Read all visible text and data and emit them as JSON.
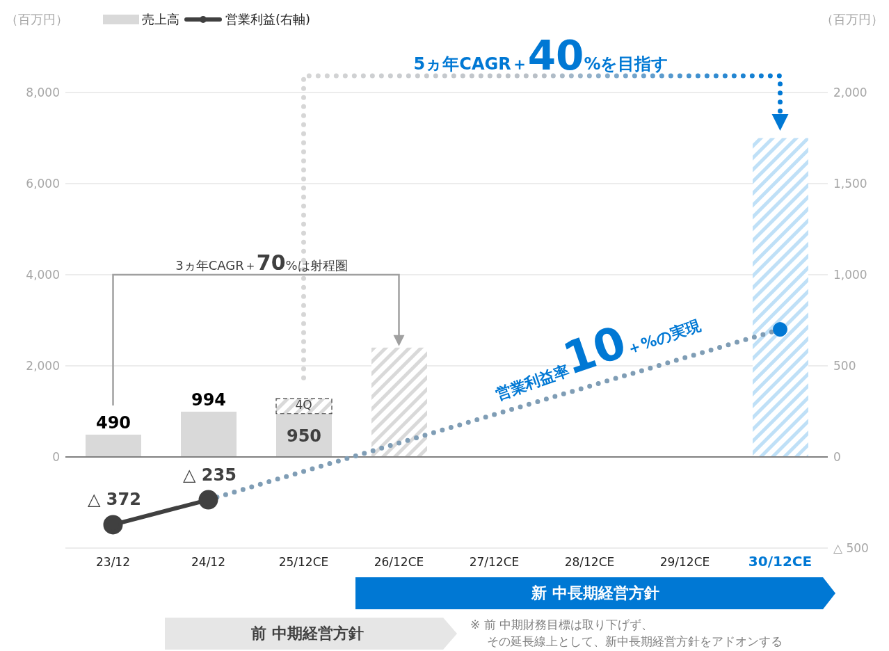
{
  "chart_data": {
    "type": "bar",
    "stacked": true,
    "categories": [
      "23/12",
      "24/12",
      "25/12CE",
      "26/12CE",
      "27/12CE",
      "28/12CE",
      "29/12CE",
      "30/12CE"
    ],
    "series": [
      {
        "name": "売上高",
        "color": "#d9d9d9",
        "values": [
          490,
          994,
          950,
          null,
          null,
          null,
          null,
          null
        ],
        "value_labels": [
          "490",
          "994",
          "950",
          null,
          null,
          null,
          null,
          null
        ]
      },
      {
        "color": "#404040",
        "line_style": "dashed",
        "values": [
          null,
          null,
          330,
          null,
          null,
          null,
          null,
          null
        ]
      },
      {
        "colors": [
          null,
          null,
          null,
          "#d9d9d9",
          null,
          null,
          null,
          "#bfe0f7"
        ],
        "values": [
          null,
          null,
          null,
          2400,
          null,
          null,
          null,
          7000
        ]
      },
      {
        "name": "営業利益(右軸)",
        "type": "line",
        "axis": "y2",
        "color": "#404040",
        "marker": "circle",
        "line_style": "solid",
        "values": [
          -372,
          -235,
          null,
          null,
          null,
          null,
          null,
          null
        ]
      },
      {
        "type": "line",
        "axis": "y2",
        "color": "#7f9db5",
        "marker": "none",
        "line_style": "dotted",
        "values": [
          null,
          -235,
          null,
          null,
          null,
          null,
          null,
          700
        ]
      },
      {
        "type": "scatter",
        "axis": "y2",
        "color": "#0078d4",
        "x": [
          "30/12CE"
        ],
        "values": [
          700
        ]
      }
    ],
    "ylabel": "（百万円）",
    "y2label": "（百万円）",
    "ylim": [
      -2000,
      8000
    ],
    "yticks": [
      {
        "value": -2000,
        "label": null
      },
      0,
      {
        "value": 2000,
        "label": "2,000"
      },
      {
        "value": 4000,
        "label": "4,000"
      },
      {
        "value": 6000,
        "label": "6,000"
      },
      {
        "value": 8000,
        "label": "8,000"
      }
    ],
    "y2lim": [
      -500,
      2000
    ],
    "y2ticks": [
      {
        "value": -500,
        "label": "△ 500"
      },
      0,
      500,
      {
        "value": 1000,
        "label": "1,000"
      },
      {
        "value": 1500,
        "label": "1,500"
      },
      {
        "value": 2000,
        "label": "2,000"
      }
    ],
    "grid": "y",
    "legend": "top left",
    "ref_lines": [
      {
        "axis": "y",
        "value": 0,
        "color": "#808080"
      }
    ],
    "annotations": [
      "5ヵ年CAGR＋40%を目指す",
      "3ヵ年CAGR＋70%は射程圏",
      "営業利益率10＋%の実現",
      "4Q",
      "新 中長期経営方針",
      "前 中期経営方針",
      "※ 前 中期財務目標は取り下げず、",
      "その延長線上として、新中長期経営方針をアドオンする",
      "△ 372",
      "△ 235"
    ]
  }
}
